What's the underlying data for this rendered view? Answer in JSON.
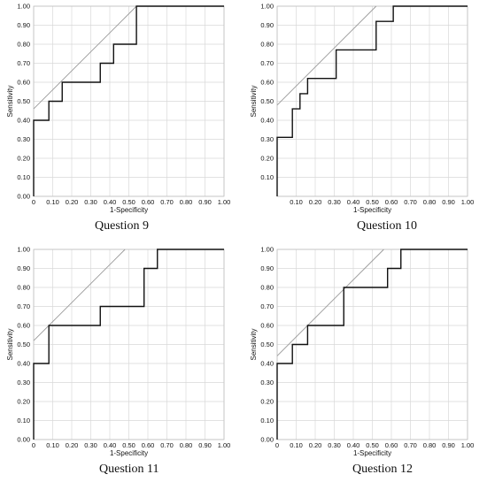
{
  "chart_data": [
    {
      "type": "line",
      "caption": "Question 9",
      "xlabel": "1-Specificity",
      "ylabel": "Sensitivity",
      "xlim": [
        0,
        1
      ],
      "ylim": [
        0,
        1
      ],
      "xticks": [
        "0",
        "0.10",
        "0.20",
        "0.30",
        "0.40",
        "0.50",
        "0.60",
        "0.70",
        "0.80",
        "0.90",
        "1.00"
      ],
      "yticks": [
        "0.00",
        "0.10",
        "0.20",
        "0.30",
        "0.40",
        "0.50",
        "0.60",
        "0.70",
        "0.80",
        "0.90",
        "1.00"
      ],
      "grid": true,
      "series": [
        {
          "x": [
            0,
            0,
            0.08,
            0.08,
            0.15,
            0.15,
            0.35,
            0.35,
            0.42,
            0.42,
            0.54,
            0.54,
            1.0
          ],
          "y": [
            0,
            0.4,
            0.4,
            0.5,
            0.5,
            0.6,
            0.6,
            0.7,
            0.7,
            0.8,
            0.8,
            1.0,
            1.0
          ]
        }
      ],
      "reference_line": {
        "x": [
          0,
          0.54
        ],
        "y": [
          0.46,
          1.0
        ]
      }
    },
    {
      "type": "line",
      "caption": "Question 10",
      "xlabel": "1-Specificity",
      "ylabel": "Sensitivity",
      "xlim": [
        0,
        1
      ],
      "ylim": [
        0,
        1
      ],
      "xticks": [
        "0.10",
        "0.20",
        "0.30",
        "0.40",
        "0.50",
        "0.60",
        "0.70",
        "0.80",
        "0.90",
        "1.00"
      ],
      "yticks": [
        "0.10",
        "0.20",
        "0.30",
        "0.40",
        "0.50",
        "0.60",
        "0.70",
        "0.80",
        "0.90",
        "1.00"
      ],
      "grid": true,
      "series": [
        {
          "x": [
            0,
            0,
            0.08,
            0.08,
            0.12,
            0.12,
            0.16,
            0.16,
            0.31,
            0.31,
            0.52,
            0.52,
            0.61,
            0.61,
            1.0
          ],
          "y": [
            0,
            0.31,
            0.31,
            0.46,
            0.46,
            0.54,
            0.54,
            0.62,
            0.62,
            0.77,
            0.77,
            0.92,
            0.92,
            1.0,
            1.0
          ]
        }
      ],
      "reference_line": {
        "x": [
          0,
          0.52
        ],
        "y": [
          0.48,
          1.0
        ]
      }
    },
    {
      "type": "line",
      "caption": "Question 11",
      "xlabel": "1-Specificity",
      "ylabel": "Sensitivity",
      "xlim": [
        0,
        1
      ],
      "ylim": [
        0,
        1
      ],
      "xticks": [
        "0",
        "0.10",
        "0.20",
        "0.30",
        "0.40",
        "0.50",
        "0.60",
        "0.70",
        "0.80",
        "0.90",
        "1.00"
      ],
      "yticks": [
        "0.00",
        "0.10",
        "0.20",
        "0.30",
        "0.40",
        "0.50",
        "0.60",
        "0.70",
        "0.80",
        "0.90",
        "1.00"
      ],
      "grid": true,
      "series": [
        {
          "x": [
            0,
            0,
            0.08,
            0.08,
            0.35,
            0.35,
            0.58,
            0.58,
            0.65,
            0.65,
            1.0
          ],
          "y": [
            0,
            0.4,
            0.4,
            0.6,
            0.6,
            0.7,
            0.7,
            0.9,
            0.9,
            1.0,
            1.0
          ]
        }
      ],
      "reference_line": {
        "x": [
          0,
          0.48
        ],
        "y": [
          0.52,
          1.0
        ]
      }
    },
    {
      "type": "line",
      "caption": "Question 12",
      "xlabel": "1-Specificity",
      "ylabel": "Sensitivity",
      "xlim": [
        0,
        1
      ],
      "ylim": [
        0,
        1
      ],
      "xticks": [
        "0",
        "0.10",
        "0.20",
        "0.30",
        "0.40",
        "0.50",
        "0.60",
        "0.70",
        "0.80",
        "0.90",
        "1.00"
      ],
      "yticks": [
        "0.00",
        "0.10",
        "0.20",
        "0.30",
        "0.40",
        "0.50",
        "0.60",
        "0.70",
        "0.80",
        "0.90",
        "1.00"
      ],
      "grid": true,
      "series": [
        {
          "x": [
            0,
            0,
            0.08,
            0.08,
            0.16,
            0.16,
            0.35,
            0.35,
            0.58,
            0.58,
            0.65,
            0.65,
            1.0
          ],
          "y": [
            0,
            0.4,
            0.4,
            0.5,
            0.5,
            0.6,
            0.6,
            0.8,
            0.8,
            0.9,
            0.9,
            1.0,
            1.0
          ]
        }
      ],
      "reference_line": {
        "x": [
          0,
          0.56
        ],
        "y": [
          0.44,
          1.0
        ]
      }
    }
  ],
  "colors": {
    "curve": "#111111",
    "reference": "#9a9a9a",
    "grid": "#d9d9d9",
    "frame": "#bfbfbf"
  }
}
